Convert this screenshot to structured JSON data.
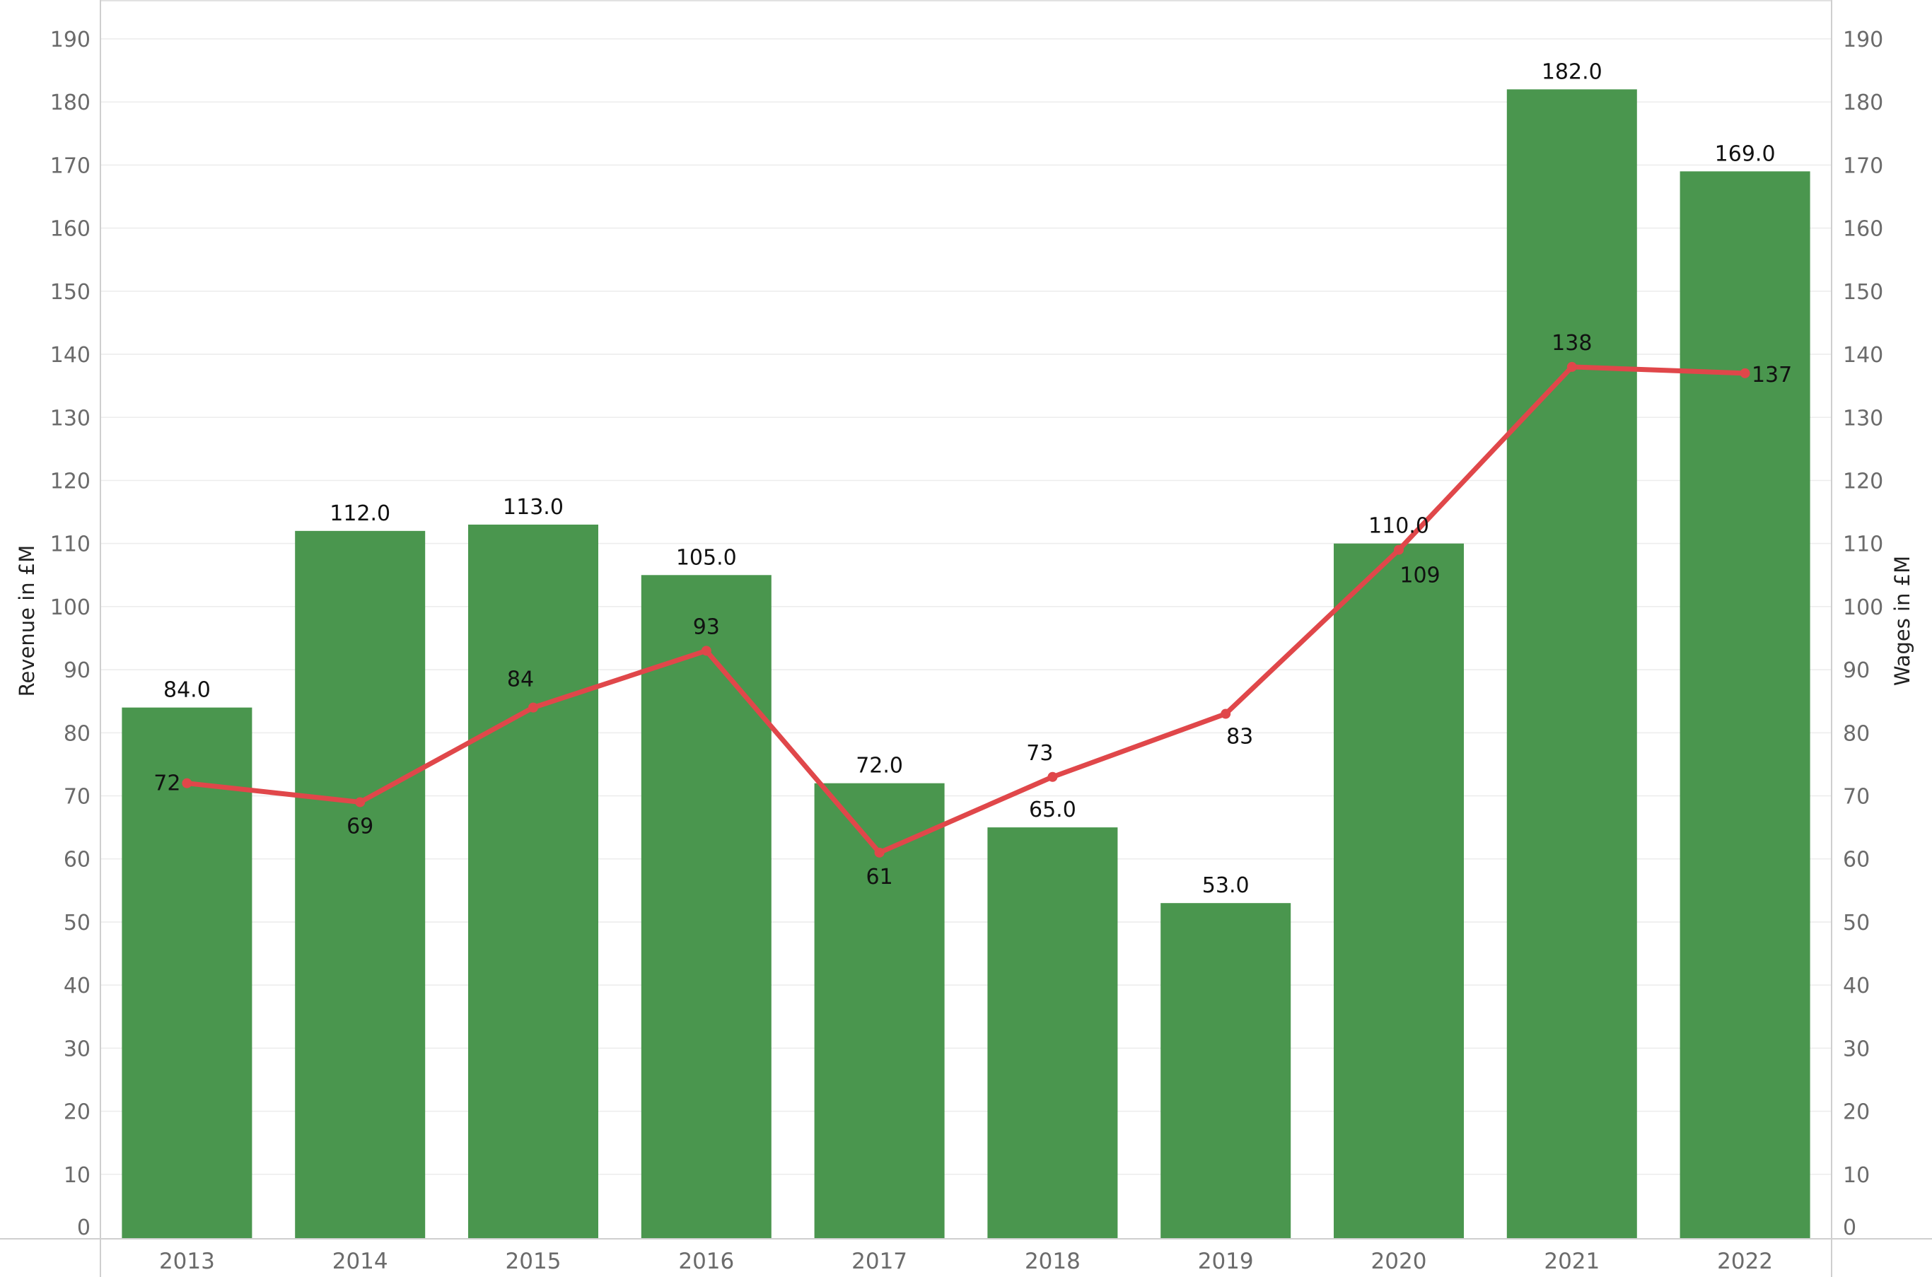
{
  "chart_data": {
    "type": "bar",
    "categories": [
      "2013",
      "2014",
      "2015",
      "2016",
      "2017",
      "2018",
      "2019",
      "2020",
      "2021",
      "2022"
    ],
    "series": [
      {
        "type": "bar",
        "axis": "left",
        "values": [
          84.0,
          112.0,
          113.0,
          105.0,
          72.0,
          65.0,
          53.0,
          110.0,
          182.0,
          169.0
        ],
        "labels": [
          "84.0",
          "112.0",
          "113.0",
          "105.0",
          "72.0",
          "65.0",
          "53.0",
          "110.0",
          "182.0",
          "169.0"
        ],
        "color": "#4a964e"
      },
      {
        "type": "line",
        "axis": "right",
        "values": [
          72,
          69,
          84,
          93,
          61,
          73,
          83,
          109,
          138,
          137
        ],
        "labels": [
          "72",
          "69",
          "84",
          "93",
          "61",
          "73",
          "83",
          "109",
          "138",
          "137"
        ],
        "color": "#e0474a"
      }
    ],
    "ylabel": "Revenue in £M",
    "y2label": "Wages in £M",
    "ylim": [
      0,
      190
    ],
    "y2lim": [
      0,
      190
    ],
    "yticks": [
      "0",
      "10",
      "20",
      "30",
      "40",
      "50",
      "60",
      "70",
      "80",
      "90",
      "100",
      "110",
      "120",
      "130",
      "140",
      "150",
      "160",
      "170",
      "180",
      "190"
    ],
    "grid": true
  }
}
